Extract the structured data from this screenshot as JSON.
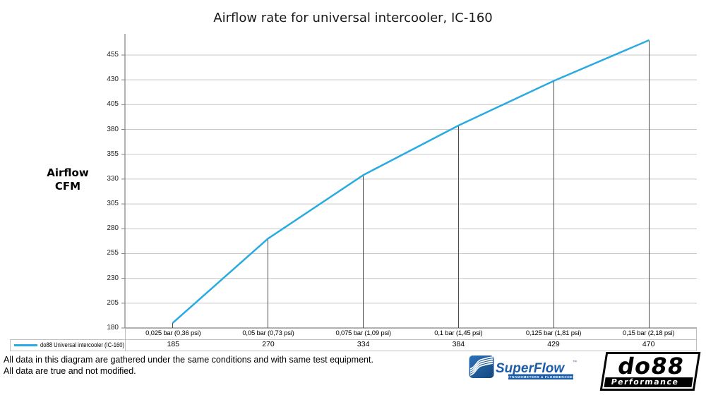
{
  "title": "Airflow rate for universal intercooler, IC-160",
  "y_axis_title": {
    "line1": "Airflow",
    "line2": "CFM"
  },
  "chart_data": {
    "type": "line",
    "title": "Airflow rate for universal intercooler, IC-160",
    "xlabel": "",
    "ylabel": "Airflow CFM",
    "categories": [
      "0,025 bar (0,36 psi)",
      "0,05 bar (0,73 psi)",
      "0,075 bar (1,09 psi)",
      "0,1 bar (1,45 psi)",
      "0,125 bar (1,81 psi)",
      "0,15 bar (2,18 psi)"
    ],
    "series": [
      {
        "name": "do88 Universal intercooler (IC-160)",
        "color": "#29ABE2",
        "values": [
          185,
          270,
          334,
          384,
          429,
          470
        ]
      }
    ],
    "y_ticks": [
      180,
      205,
      230,
      255,
      280,
      305,
      330,
      355,
      380,
      405,
      430,
      455
    ],
    "ylim": [
      180,
      477
    ],
    "grid": true,
    "legend_position": "bottom data table"
  },
  "footer": {
    "line1": "All data in this diagram are gathered under the same conditions and with same test equipment.",
    "line2": "All data are true and not modified."
  },
  "logos": {
    "superflow": {
      "name": "SuperFlow",
      "tm": "™",
      "tagline": "DYNAMOMETERS & FLOWBENCHES"
    },
    "do88": {
      "name": "do88",
      "tagline": "Performance"
    }
  },
  "colors": {
    "line": "#29ABE2",
    "grid": "#c9c9c9",
    "axis": "#808080",
    "drop_line": "#4a4a4a",
    "table_border": "#bfbfbf",
    "superflow_blue": "#1d5da7"
  }
}
